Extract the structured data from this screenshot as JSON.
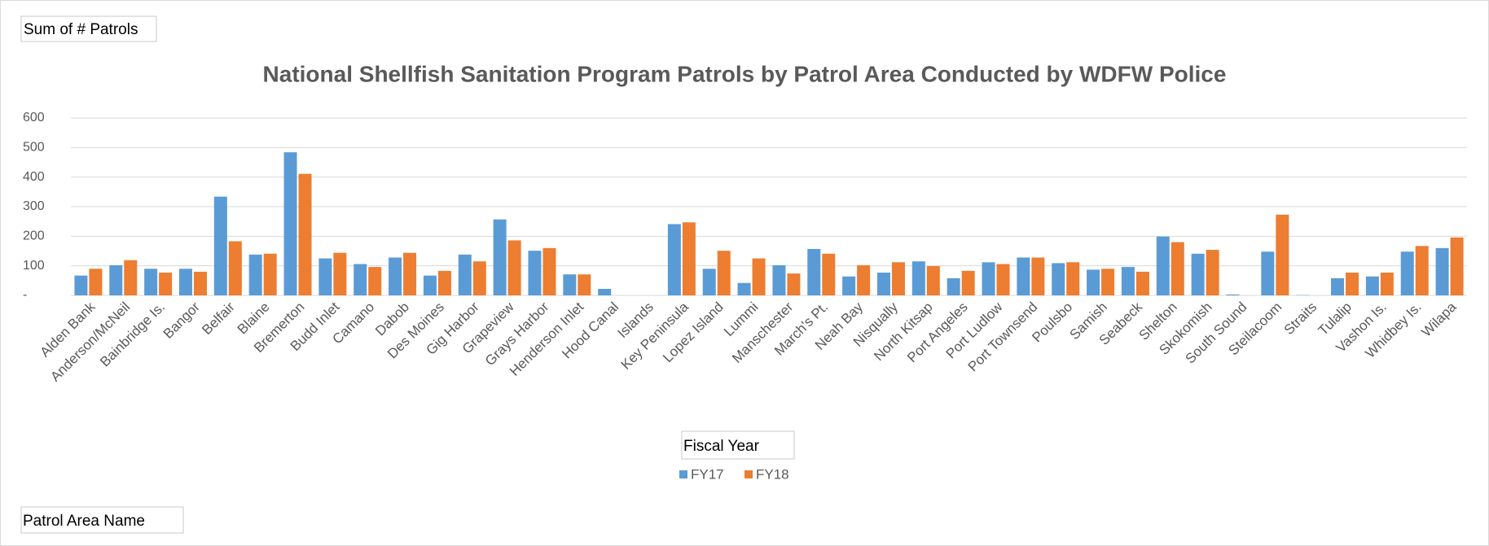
{
  "chart_data": {
    "type": "bar",
    "title": "National Shellfish Sanitation Program Patrols by Patrol Area Conducted by WDFW Police",
    "field_buttons": {
      "values": "Sum of # Patrols",
      "legend": "Fiscal Year",
      "axis": "Patrol Area Name"
    },
    "categories": [
      "Alden Bank",
      "Anderson/McNeil",
      "Bainbridge Is.",
      "Bangor",
      "Belfair",
      "Blaine",
      "Bremerton",
      "Budd Inlet",
      "Camano",
      "Dabob",
      "Des Moines",
      "Gig Harbor",
      "Grapeview",
      "Grays Harbor",
      "Henderson Inlet",
      "Hood Canal",
      "Islands",
      "Key Peninsula",
      "Lopez Island",
      "Lummi",
      "Manschester",
      "March's Pt.",
      "Neah Bay",
      "Nisqually",
      "North Kitsap",
      "Port Angeles",
      "Port Ludlow",
      "Port Townsend",
      "Poulsbo",
      "Samish",
      "Seabeck",
      "Shelton",
      "Skokomish",
      "South Sound",
      "Steilacoom",
      "Straits",
      "Tulalip",
      "Vashon Is.",
      "Whidbey Is.",
      "Wilapa"
    ],
    "series": [
      {
        "name": "FY17",
        "color": "#5b9bd5",
        "values": [
          67,
          102,
          90,
          90,
          334,
          138,
          484,
          125,
          106,
          128,
          67,
          138,
          257,
          151,
          71,
          22,
          null,
          241,
          90,
          42,
          102,
          157,
          64,
          77,
          115,
          58,
          112,
          128,
          109,
          87,
          96,
          199,
          141,
          3,
          148,
          1,
          58,
          64,
          148,
          160
        ]
      },
      {
        "name": "FY18",
        "color": "#ed7d31",
        "values": [
          90,
          119,
          77,
          80,
          183,
          141,
          411,
          144,
          96,
          144,
          83,
          115,
          186,
          160,
          71,
          null,
          null,
          247,
          151,
          125,
          74,
          141,
          102,
          112,
          99,
          83,
          106,
          128,
          112,
          90,
          80,
          180,
          154,
          null,
          273,
          null,
          77,
          77,
          167,
          196
        ]
      }
    ],
    "ylim": [
      0,
      600
    ],
    "yticks": [
      {
        "value": 0,
        "label": "-"
      },
      100,
      200,
      300,
      400,
      500,
      600
    ],
    "grid": true
  }
}
